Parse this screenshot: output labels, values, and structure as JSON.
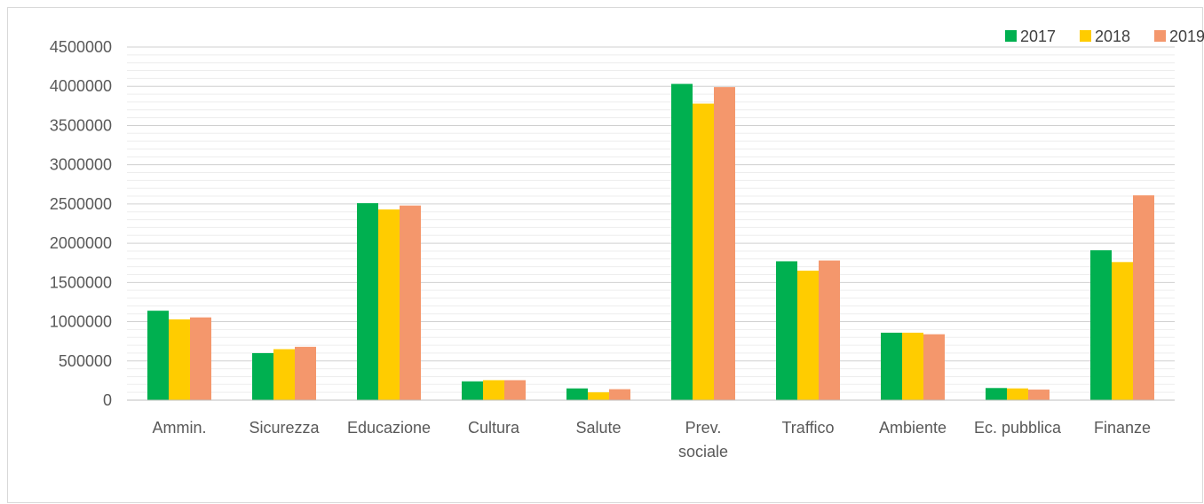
{
  "chart_data": {
    "type": "bar",
    "title": "",
    "xlabel": "",
    "ylabel": "",
    "categories": [
      "Ammin.",
      "Sicurezza",
      "Educazione",
      "Cultura",
      "Salute",
      "Prev. sociale",
      "Traffico",
      "Ambiente",
      "Ec. pubblica",
      "Finanze"
    ],
    "category_label_lines": [
      [
        "Ammin."
      ],
      [
        "Sicurezza"
      ],
      [
        "Educazione"
      ],
      [
        "Cultura"
      ],
      [
        "Salute"
      ],
      [
        "Prev.",
        "sociale"
      ],
      [
        "Traffico"
      ],
      [
        "Ambiente"
      ],
      [
        "Ec. pubblica"
      ],
      [
        "Finanze"
      ]
    ],
    "series": [
      {
        "name": "2017",
        "color": "#00b050",
        "values": [
          1140000,
          600000,
          2510000,
          240000,
          150000,
          4030000,
          1770000,
          860000,
          155000,
          1910000
        ]
      },
      {
        "name": "2018",
        "color": "#ffcc00",
        "values": [
          1030000,
          650000,
          2430000,
          255000,
          100000,
          3780000,
          1650000,
          860000,
          150000,
          1760000
        ]
      },
      {
        "name": "2019",
        "color": "#f4976c",
        "values": [
          1055000,
          680000,
          2480000,
          255000,
          140000,
          3990000,
          1780000,
          840000,
          135000,
          2610000
        ]
      }
    ],
    "ylim": [
      0,
      4500000
    ],
    "y_ticks": [
      "0",
      "500000",
      "1000000",
      "1500000",
      "2000000",
      "2500000",
      "3000000",
      "3500000",
      "4000000",
      "4500000"
    ],
    "grid": true,
    "legend_position": "top-right"
  }
}
